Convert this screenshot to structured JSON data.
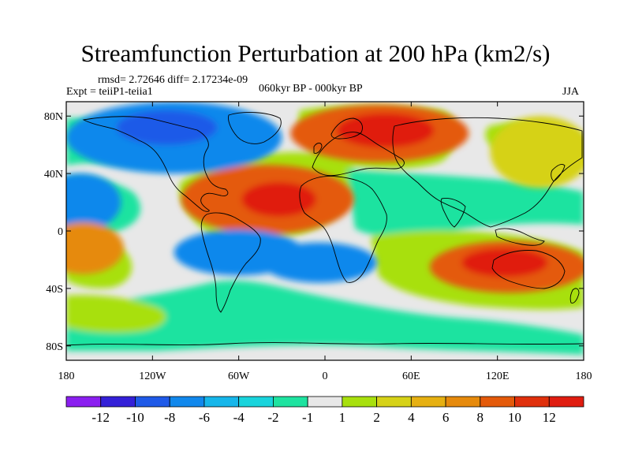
{
  "title": "Streamfunction Perturbation at 200 hPa (km2/s)",
  "stats_line": "rmsd= 2.72646 diff= 2.17234e-09",
  "experiment": "Expt = teiiP1-teiia1",
  "period": "060kyr BP - 000kyr BP",
  "season": "JJA",
  "map": {
    "projection": "cylindrical-equidistant",
    "lon_range": [
      -180,
      180
    ],
    "lat_range": [
      -90,
      90
    ],
    "lat_ticks": [
      {
        "value": 80,
        "label": "80N"
      },
      {
        "value": 40,
        "label": "40N"
      },
      {
        "value": 0,
        "label": "0"
      },
      {
        "value": -40,
        "label": "40S"
      },
      {
        "value": -80,
        "label": "80S"
      }
    ],
    "lon_ticks": [
      {
        "value": -180,
        "label": "180"
      },
      {
        "value": -120,
        "label": "120W"
      },
      {
        "value": -60,
        "label": "60W"
      },
      {
        "value": 0,
        "label": "0"
      },
      {
        "value": 60,
        "label": "60E"
      },
      {
        "value": 120,
        "label": "120E"
      },
      {
        "value": 180,
        "label": "180"
      }
    ]
  },
  "colorbar": {
    "colors": [
      "#8b1ff0",
      "#3420d8",
      "#1f5ae8",
      "#1188ec",
      "#16b6ea",
      "#19d4dc",
      "#1ee3a0",
      "#e8e8e8",
      "#a8e00e",
      "#d6d218",
      "#e6b012",
      "#e68a0c",
      "#e45a0a",
      "#e0300c",
      "#e01d10"
    ],
    "labels": [
      "-12",
      "-10",
      "-8",
      "-6",
      "-4",
      "-2",
      "-1",
      "1",
      "2",
      "4",
      "6",
      "8",
      "10",
      "12"
    ]
  },
  "field_blobs": [
    {
      "lon": -40,
      "lat": 22,
      "rlon": 60,
      "rlat": 24,
      "level": 5
    },
    {
      "lon": -32,
      "lat": 22,
      "rlon": 26,
      "rlat": 12,
      "level": 7
    },
    {
      "lon": 38,
      "lat": 68,
      "rlon": 62,
      "rlat": 20,
      "level": 5
    },
    {
      "lon": 42,
      "lat": 70,
      "rlon": 34,
      "rlat": 12,
      "level": 7
    },
    {
      "lon": -105,
      "lat": 65,
      "rlon": 75,
      "rlat": 25,
      "level": -4
    },
    {
      "lon": -110,
      "lat": 72,
      "rlon": 35,
      "rlat": 12,
      "level": -5
    },
    {
      "lon": -60,
      "lat": -15,
      "rlon": 45,
      "rlat": 16,
      "level": -4
    },
    {
      "lon": -4,
      "lat": -22,
      "rlon": 40,
      "rlat": 14,
      "level": -4
    },
    {
      "lon": -170,
      "lat": 20,
      "rlon": 28,
      "rlat": 20,
      "level": -4
    },
    {
      "lon": 128,
      "lat": -25,
      "rlon": 55,
      "rlat": 18,
      "level": 5
    },
    {
      "lon": 125,
      "lat": -22,
      "rlon": 30,
      "rlat": 10,
      "level": 7
    },
    {
      "lon": -168,
      "lat": -12,
      "rlon": 28,
      "rlat": 18,
      "level": 4
    },
    {
      "lon": 150,
      "lat": 55,
      "rlon": 35,
      "rlat": 25,
      "level": 2
    }
  ]
}
